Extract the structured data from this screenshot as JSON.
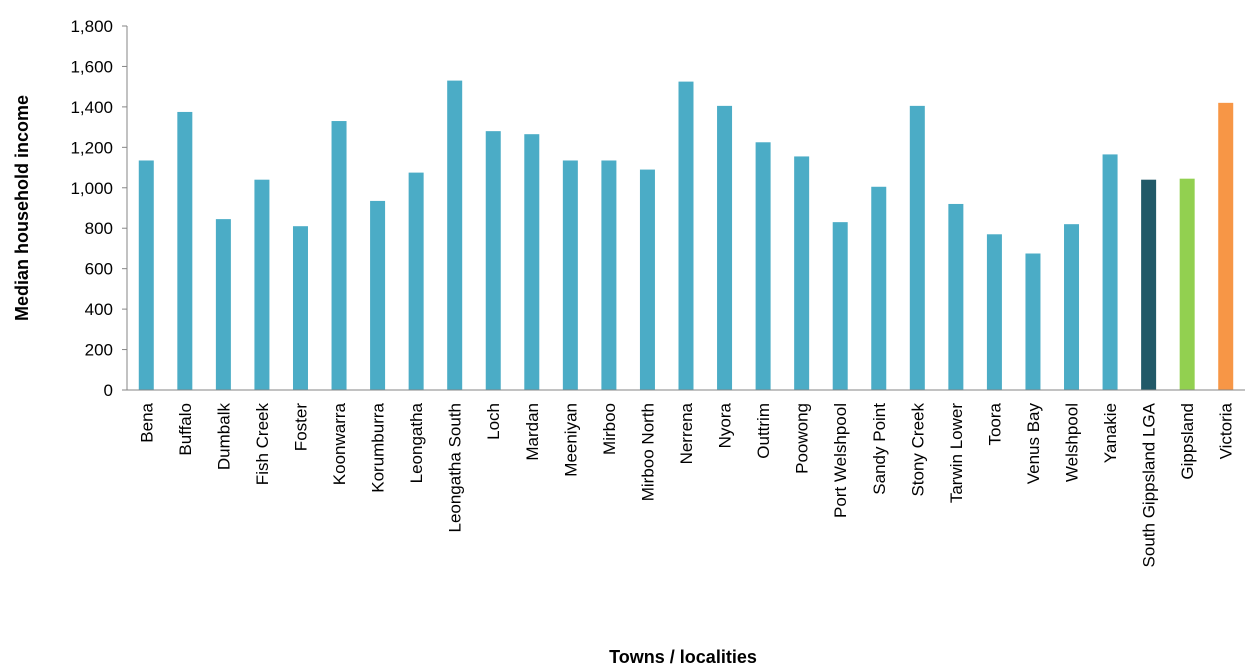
{
  "chart_data": {
    "type": "bar",
    "xlabel": "Towns / localities",
    "ylabel": "Median household income",
    "ylim": [
      0,
      1800
    ],
    "yticks": [
      0,
      200,
      400,
      600,
      800,
      1000,
      1200,
      1400,
      1600,
      1800
    ],
    "ytick_labels": [
      "0",
      "200",
      "400",
      "600",
      "800",
      "1,000",
      "1,200",
      "1,400",
      "1,600",
      "1,800"
    ],
    "grid": false,
    "legend": "none",
    "categories": [
      "Bena",
      "Buffalo",
      "Dumbalk",
      "Fish Creek",
      "Foster",
      "Koonwarra",
      "Korumburra",
      "Leongatha",
      "Leongatha South",
      "Loch",
      "Mardan",
      "Meeniyan",
      "Mirboo",
      "Mirboo North",
      "Nerrena",
      "Nyora",
      "Outtrim",
      "Poowong",
      "Port Welshpool",
      "Sandy Point",
      "Stony Creek",
      "Tarwin Lower",
      "Toora",
      "Venus Bay",
      "Welshpool",
      "Yanakie",
      "South Gippsland LGA",
      "Gippsland",
      "Victoria"
    ],
    "values": [
      1135,
      1375,
      845,
      1040,
      810,
      1330,
      935,
      1075,
      1530,
      1280,
      1265,
      1135,
      1135,
      1090,
      1525,
      1405,
      1225,
      1155,
      830,
      1005,
      1405,
      920,
      770,
      675,
      820,
      1165,
      1040,
      1045,
      1420
    ],
    "colors": [
      "#4BACC6",
      "#4BACC6",
      "#4BACC6",
      "#4BACC6",
      "#4BACC6",
      "#4BACC6",
      "#4BACC6",
      "#4BACC6",
      "#4BACC6",
      "#4BACC6",
      "#4BACC6",
      "#4BACC6",
      "#4BACC6",
      "#4BACC6",
      "#4BACC6",
      "#4BACC6",
      "#4BACC6",
      "#4BACC6",
      "#4BACC6",
      "#4BACC6",
      "#4BACC6",
      "#4BACC6",
      "#4BACC6",
      "#4BACC6",
      "#4BACC6",
      "#4BACC6",
      "#215968",
      "#92D050",
      "#F79646"
    ]
  }
}
